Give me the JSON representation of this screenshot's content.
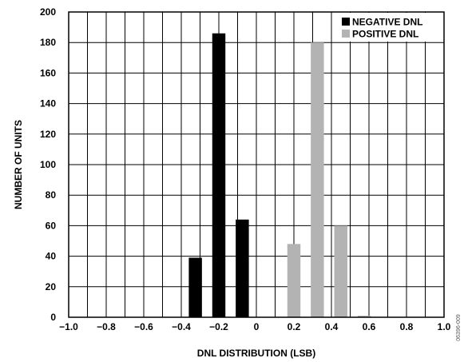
{
  "chart_data": {
    "type": "bar",
    "title": "",
    "xlabel": "DNL DISTRIBUTION (LSB)",
    "ylabel": "NUMBER OF UNITS",
    "xlim": [
      -1.0,
      1.0
    ],
    "ylim": [
      0,
      200
    ],
    "x_ticks": [
      "−1.0",
      "−0.8",
      "−0.6",
      "−0.4",
      "−0.2",
      "0",
      "0.2",
      "0.4",
      "0.6",
      "0.8",
      "1.0"
    ],
    "y_ticks": [
      "0",
      "20",
      "40",
      "60",
      "80",
      "100",
      "120",
      "140",
      "160",
      "180",
      "200"
    ],
    "grid": true,
    "legend_position": "top-right",
    "bar_width": 0.07,
    "series": [
      {
        "name": "NEGATIVE DNL",
        "color": "#000000",
        "x": [
          -0.325,
          -0.2,
          -0.075
        ],
        "values": [
          39,
          186,
          64
        ]
      },
      {
        "name": "POSITIVE DNL",
        "color": "#b3b3b3",
        "x": [
          0.2,
          0.325,
          0.45,
          0.575
        ],
        "values": [
          48,
          180,
          60,
          1
        ]
      }
    ],
    "figure_code": "06396-009"
  }
}
